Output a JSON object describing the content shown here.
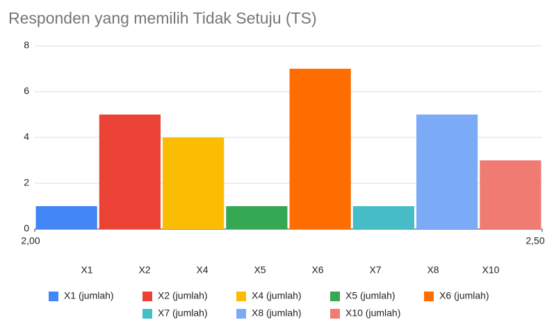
{
  "chart_data": {
    "type": "bar",
    "title": "Responden yang memilih Tidak Setuju (TS)",
    "categories": [
      "X1",
      "X2",
      "X4",
      "X5",
      "X6",
      "X7",
      "X8",
      "X10"
    ],
    "series": [
      {
        "name": "X1 (jumlah)",
        "color": "#4285f4",
        "values": [
          1,
          null,
          null,
          null,
          null,
          null,
          null,
          null
        ]
      },
      {
        "name": "X2 (jumlah)",
        "color": "#ea4335",
        "values": [
          null,
          5,
          null,
          null,
          null,
          null,
          null,
          null
        ]
      },
      {
        "name": "X4 (jumlah)",
        "color": "#fbbc04",
        "values": [
          null,
          null,
          4,
          null,
          null,
          null,
          null,
          null
        ]
      },
      {
        "name": "X5 (jumlah)",
        "color": "#34a853",
        "values": [
          null,
          null,
          null,
          1,
          null,
          null,
          null,
          null
        ]
      },
      {
        "name": "X6 (jumlah)",
        "color": "#ff6d01",
        "values": [
          null,
          null,
          null,
          null,
          7,
          null,
          null,
          null
        ]
      },
      {
        "name": "X7 (jumlah)",
        "color": "#46bdc6",
        "values": [
          null,
          null,
          null,
          null,
          null,
          1,
          null,
          null
        ]
      },
      {
        "name": "X8 (jumlah)",
        "color": "#7baaf7",
        "values": [
          null,
          null,
          null,
          null,
          null,
          null,
          5,
          null
        ]
      },
      {
        "name": "X10 (jumlah)",
        "color": "#f07b72",
        "values": [
          null,
          null,
          null,
          null,
          null,
          null,
          null,
          3
        ]
      }
    ],
    "ylim": [
      0,
      8
    ],
    "yticks": [
      0,
      2,
      4,
      6,
      8
    ],
    "xlim": [
      2,
      2.5
    ],
    "xticks": [
      {
        "value": 2,
        "label": "2,00"
      },
      {
        "value": 2.5,
        "label": "2,50"
      }
    ],
    "grid": true
  }
}
